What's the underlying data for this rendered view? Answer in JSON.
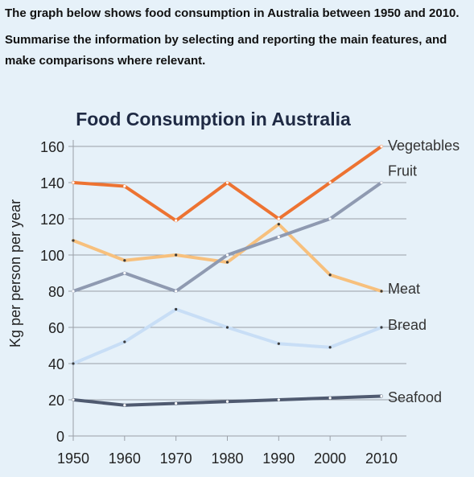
{
  "prompt": {
    "line1": "The graph below shows food consumption in Australia between 1950 and 2010.",
    "line2": "Summarise the information by selecting and reporting the main features, and make comparisons where relevant."
  },
  "colors": {
    "background": "#e6f1f9",
    "gridline": "#9aa0a8",
    "Vegetables": "#ed7332",
    "Fruit": "#8f9ab1",
    "Meat": "#f7c07d",
    "Bread": "#c8def6",
    "Seafood": "#4f5a70"
  },
  "chart_data": {
    "type": "line",
    "title": "Food Consumption in Australia",
    "xlabel": "",
    "ylabel": "Kg per person per year",
    "x": [
      1950,
      1960,
      1970,
      1980,
      1990,
      2000,
      2010
    ],
    "ylim": [
      0,
      160
    ],
    "yticks": [
      0,
      20,
      40,
      60,
      80,
      100,
      120,
      140,
      160
    ],
    "grid": true,
    "legend": "labels at right end of each line",
    "series": [
      {
        "name": "Vegetables",
        "values": [
          140,
          138,
          119,
          140,
          120,
          140,
          160
        ]
      },
      {
        "name": "Fruit",
        "values": [
          80,
          90,
          80,
          100,
          110,
          120,
          140
        ]
      },
      {
        "name": "Meat",
        "values": [
          108,
          97,
          100,
          96,
          117,
          89,
          80
        ]
      },
      {
        "name": "Bread",
        "values": [
          40,
          52,
          70,
          60,
          51,
          49,
          60
        ]
      },
      {
        "name": "Seafood",
        "values": [
          20,
          17,
          18,
          19,
          20,
          21,
          22
        ]
      }
    ]
  }
}
